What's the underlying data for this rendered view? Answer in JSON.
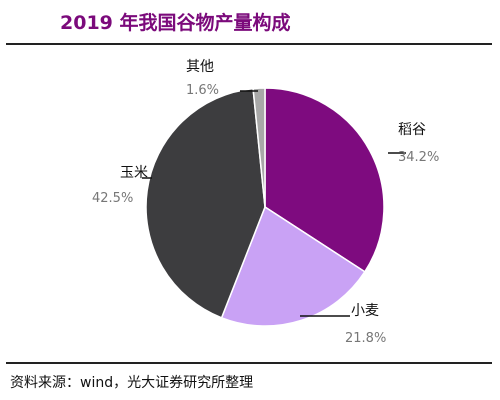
{
  "chart_data": {
    "type": "pie",
    "title": "2019 年我国谷物产量构成",
    "slices": [
      {
        "label": "稻谷",
        "value": 34.2,
        "display": "34.2%",
        "color": "#7e0b7f"
      },
      {
        "label": "小麦",
        "value": 21.8,
        "display": "21.8%",
        "color": "#c9a2f5"
      },
      {
        "label": "玉米",
        "value": 42.5,
        "display": "42.5%",
        "color": "#3d3d3f"
      },
      {
        "label": "其他",
        "value": 1.6,
        "display": "1.6%",
        "color": "#a8a8a8"
      }
    ],
    "start": "12 o'clock",
    "direction": "clockwise"
  },
  "source": "资料来源：wind，光大证券研究所整理"
}
